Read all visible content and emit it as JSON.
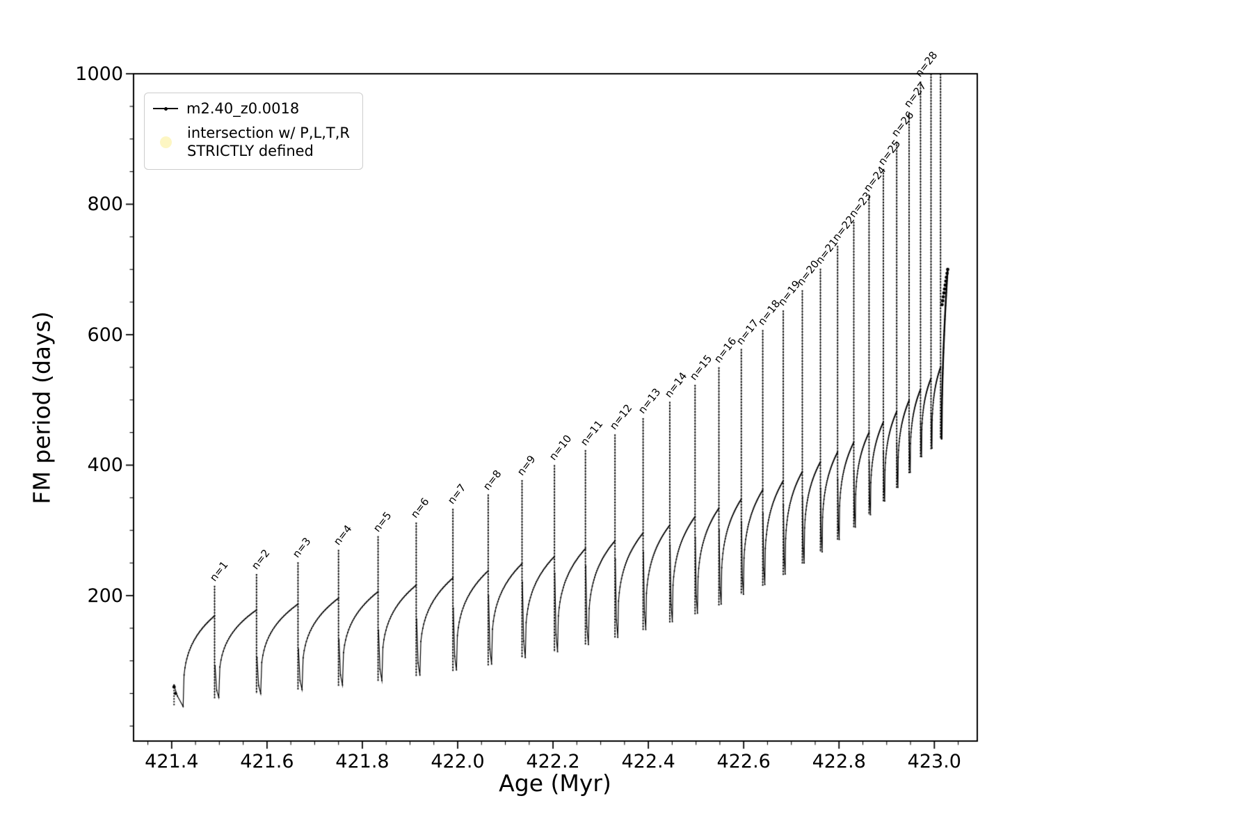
{
  "chart_data": {
    "type": "line",
    "title": "",
    "xlabel": "Age (Myr)",
    "ylabel": "FM period (days)",
    "xlim": [
      421.32,
      423.09
    ],
    "ylim": [
      -23,
      1000
    ],
    "xticks": [
      421.4,
      421.6,
      421.8,
      422.0,
      422.2,
      422.4,
      422.6,
      422.8,
      423.0
    ],
    "x_minor_step": 0.05,
    "yticks": [
      200,
      400,
      600,
      800,
      1000
    ],
    "y_minor_step": 50,
    "grid": false,
    "legend": {
      "position": "upper-left",
      "entries": [
        {
          "label": "m2.40_z0.0018",
          "marker": "line-dot",
          "color": "#000000"
        },
        {
          "label": "intersection w/ P,L,T,R\nSTRICTLY defined",
          "marker": "circle",
          "color": "#fdf6c3"
        }
      ]
    },
    "series": {
      "name": "m2.40_z0.0018",
      "color": "#000000",
      "label_prefix": "n=",
      "start": {
        "age": 421.405,
        "value": 62
      },
      "dip": {
        "age": 421.424,
        "value": 30
      },
      "final": {
        "low": 440,
        "end_age": 423.028,
        "end_value": 700
      },
      "cycles": [
        {
          "n": 1,
          "age": 421.49,
          "peak": 215,
          "high": 169,
          "low": 30
        },
        {
          "n": 2,
          "age": 421.578,
          "peak": 233,
          "high": 178,
          "low": 44
        },
        {
          "n": 3,
          "age": 421.665,
          "peak": 251,
          "high": 187,
          "low": 50
        },
        {
          "n": 4,
          "age": 421.75,
          "peak": 270,
          "high": 196,
          "low": 56
        },
        {
          "n": 5,
          "age": 421.833,
          "peak": 291,
          "high": 206,
          "low": 63
        },
        {
          "n": 6,
          "age": 421.913,
          "peak": 312,
          "high": 216,
          "low": 70
        },
        {
          "n": 7,
          "age": 421.99,
          "peak": 333,
          "high": 227,
          "low": 78
        },
        {
          "n": 8,
          "age": 422.064,
          "peak": 355,
          "high": 238,
          "low": 86
        },
        {
          "n": 9,
          "age": 422.135,
          "peak": 377,
          "high": 249,
          "low": 95
        },
        {
          "n": 10,
          "age": 422.203,
          "peak": 400,
          "high": 260,
          "low": 105
        },
        {
          "n": 11,
          "age": 422.268,
          "peak": 423,
          "high": 272,
          "low": 114
        },
        {
          "n": 12,
          "age": 422.33,
          "peak": 447,
          "high": 284,
          "low": 125
        },
        {
          "n": 13,
          "age": 422.389,
          "peak": 472,
          "high": 296,
          "low": 136
        },
        {
          "n": 14,
          "age": 422.445,
          "peak": 497,
          "high": 308,
          "low": 148
        },
        {
          "n": 15,
          "age": 422.498,
          "peak": 523,
          "high": 321,
          "low": 160
        },
        {
          "n": 16,
          "age": 422.548,
          "peak": 550,
          "high": 334,
          "low": 173
        },
        {
          "n": 17,
          "age": 422.595,
          "peak": 578,
          "high": 348,
          "low": 187
        },
        {
          "n": 18,
          "age": 422.64,
          "peak": 607,
          "high": 362,
          "low": 202
        },
        {
          "n": 19,
          "age": 422.683,
          "peak": 637,
          "high": 376,
          "low": 217
        },
        {
          "n": 20,
          "age": 422.723,
          "peak": 668,
          "high": 390,
          "low": 233
        },
        {
          "n": 21,
          "age": 422.761,
          "peak": 701,
          "high": 405,
          "low": 250
        },
        {
          "n": 22,
          "age": 422.797,
          "peak": 736,
          "high": 420,
          "low": 267
        },
        {
          "n": 23,
          "age": 422.831,
          "peak": 773,
          "high": 435,
          "low": 286
        },
        {
          "n": 24,
          "age": 422.863,
          "peak": 812,
          "high": 450,
          "low": 305
        },
        {
          "n": 25,
          "age": 422.893,
          "peak": 853,
          "high": 466,
          "low": 324
        },
        {
          "n": 26,
          "age": 422.921,
          "peak": 896,
          "high": 482,
          "low": 345
        },
        {
          "n": 27,
          "age": 422.947,
          "peak": 941,
          "high": 499,
          "low": 366
        },
        {
          "n": 28,
          "age": 422.971,
          "peak": 988,
          "high": 516,
          "low": 389
        },
        {
          "n": null,
          "age": 422.993,
          "peak": 1030,
          "high": 533,
          "low": 413
        },
        {
          "n": null,
          "age": 423.013,
          "peak": 1075,
          "high": 550,
          "low": 426
        }
      ]
    }
  }
}
